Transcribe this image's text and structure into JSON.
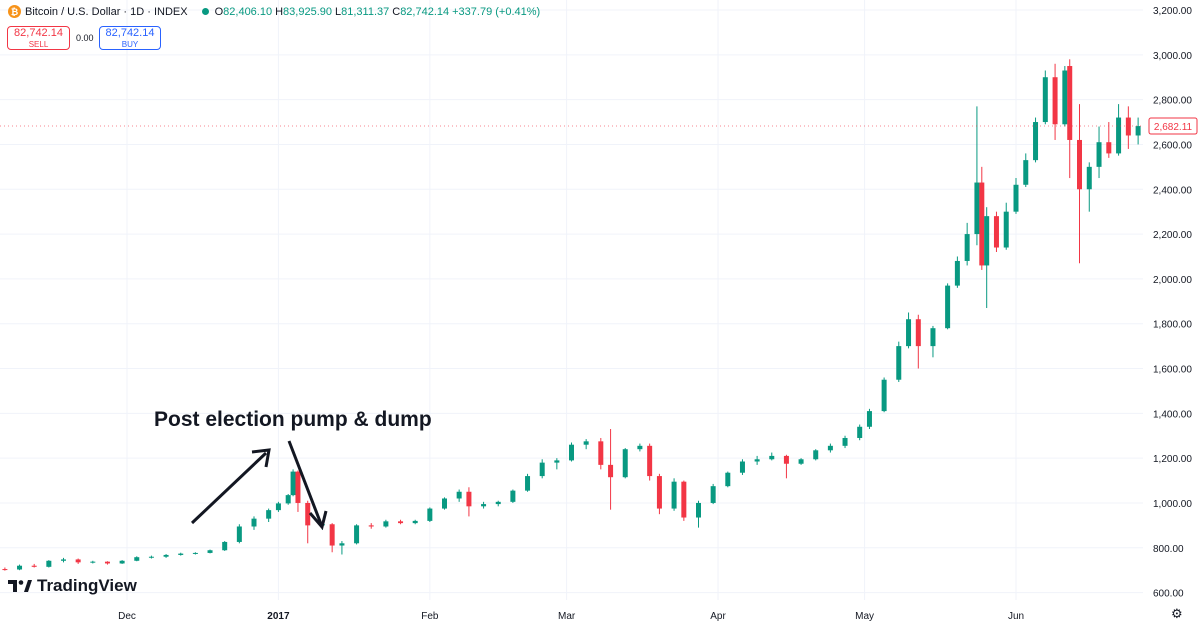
{
  "header": {
    "coin_icon": "bitcoin-icon",
    "coin_symbol": "₿",
    "symbol_title": "Bitcoin / U.S. Dollar · 1D · INDEX",
    "ohlc": {
      "o_label": "O",
      "o_value": "82,406.10",
      "h_label": "H",
      "h_value": "83,925.90",
      "l_label": "L",
      "l_value": "81,311.37",
      "c_label": "C",
      "c_value": "82,742.14",
      "change": "+337.79 (+0.41%)"
    }
  },
  "trade": {
    "sell_price": "82,742.14",
    "sell_label": "SELL",
    "spread": "0.00",
    "buy_price": "82,742.14",
    "buy_label": "BUY"
  },
  "branding": {
    "logo_text": "TradingView"
  },
  "annotation": {
    "text": "Post election pump & dump"
  },
  "colors": {
    "up": "#089981",
    "down": "#f23645",
    "grid": "#f0f3fa",
    "text": "#131722",
    "badge": "#f23645"
  },
  "chart_data": {
    "type": "candlestick",
    "title": "",
    "xlabel": "",
    "ylabel": "",
    "ylim": [
      500,
      3200
    ],
    "grid": true,
    "y_ticks": [
      "600.00",
      "800.00",
      "1,000.00",
      "1,200.00",
      "1,400.00",
      "1,600.00",
      "1,800.00",
      "2,000.00",
      "2,200.00",
      "2,400.00",
      "2,600.00",
      "2,800.00",
      "3,000.00",
      "3,200.00"
    ],
    "x_ticks": [
      {
        "label": "Dec",
        "date": "2016-12-01"
      },
      {
        "label": "2017",
        "date": "2017-01-01"
      },
      {
        "label": "Feb",
        "date": "2017-02-01"
      },
      {
        "label": "Mar",
        "date": "2017-03-01"
      },
      {
        "label": "Apr",
        "date": "2017-04-01"
      },
      {
        "label": "May",
        "date": "2017-05-01"
      },
      {
        "label": "Jun",
        "date": "2017-06-01"
      }
    ],
    "x_start": "2016-11-05",
    "x_end": "2017-06-27",
    "last_price_label": "2,682.11",
    "last_price_value": 2682.11,
    "candles": [
      {
        "date": "2016-11-06",
        "o": 705,
        "h": 712,
        "l": 698,
        "c": 703
      },
      {
        "date": "2016-11-09",
        "o": 703,
        "h": 725,
        "l": 700,
        "c": 720
      },
      {
        "date": "2016-11-12",
        "o": 720,
        "h": 728,
        "l": 712,
        "c": 715
      },
      {
        "date": "2016-11-15",
        "o": 715,
        "h": 745,
        "l": 712,
        "c": 742
      },
      {
        "date": "2016-11-18",
        "o": 742,
        "h": 755,
        "l": 735,
        "c": 748
      },
      {
        "date": "2016-11-21",
        "o": 748,
        "h": 752,
        "l": 728,
        "c": 735
      },
      {
        "date": "2016-11-24",
        "o": 735,
        "h": 742,
        "l": 730,
        "c": 738
      },
      {
        "date": "2016-11-27",
        "o": 738,
        "h": 740,
        "l": 725,
        "c": 730
      },
      {
        "date": "2016-11-30",
        "o": 730,
        "h": 745,
        "l": 728,
        "c": 742
      },
      {
        "date": "2016-12-03",
        "o": 742,
        "h": 762,
        "l": 740,
        "c": 758
      },
      {
        "date": "2016-12-06",
        "o": 758,
        "h": 765,
        "l": 752,
        "c": 760
      },
      {
        "date": "2016-12-09",
        "o": 760,
        "h": 772,
        "l": 755,
        "c": 768
      },
      {
        "date": "2016-12-12",
        "o": 768,
        "h": 778,
        "l": 765,
        "c": 774
      },
      {
        "date": "2016-12-15",
        "o": 774,
        "h": 780,
        "l": 770,
        "c": 777
      },
      {
        "date": "2016-12-18",
        "o": 777,
        "h": 792,
        "l": 775,
        "c": 789
      },
      {
        "date": "2016-12-21",
        "o": 789,
        "h": 830,
        "l": 786,
        "c": 826
      },
      {
        "date": "2016-12-24",
        "o": 826,
        "h": 905,
        "l": 820,
        "c": 895
      },
      {
        "date": "2016-12-27",
        "o": 895,
        "h": 940,
        "l": 880,
        "c": 930
      },
      {
        "date": "2016-12-30",
        "o": 930,
        "h": 975,
        "l": 915,
        "c": 968
      },
      {
        "date": "2017-01-01",
        "o": 968,
        "h": 1005,
        "l": 960,
        "c": 998
      },
      {
        "date": "2017-01-03",
        "o": 998,
        "h": 1040,
        "l": 992,
        "c": 1035
      },
      {
        "date": "2017-01-04",
        "o": 1035,
        "h": 1150,
        "l": 1030,
        "c": 1140
      },
      {
        "date": "2017-01-05",
        "o": 1140,
        "h": 1145,
        "l": 960,
        "c": 1000
      },
      {
        "date": "2017-01-07",
        "o": 1000,
        "h": 1010,
        "l": 820,
        "c": 900
      },
      {
        "date": "2017-01-10",
        "o": 900,
        "h": 915,
        "l": 880,
        "c": 905
      },
      {
        "date": "2017-01-12",
        "o": 905,
        "h": 910,
        "l": 780,
        "c": 810
      },
      {
        "date": "2017-01-14",
        "o": 810,
        "h": 830,
        "l": 770,
        "c": 820
      },
      {
        "date": "2017-01-17",
        "o": 820,
        "h": 905,
        "l": 815,
        "c": 900
      },
      {
        "date": "2017-01-20",
        "o": 900,
        "h": 910,
        "l": 885,
        "c": 895
      },
      {
        "date": "2017-01-23",
        "o": 895,
        "h": 925,
        "l": 890,
        "c": 918
      },
      {
        "date": "2017-01-26",
        "o": 918,
        "h": 925,
        "l": 905,
        "c": 910
      },
      {
        "date": "2017-01-29",
        "o": 910,
        "h": 925,
        "l": 905,
        "c": 920
      },
      {
        "date": "2017-02-01",
        "o": 920,
        "h": 980,
        "l": 915,
        "c": 975
      },
      {
        "date": "2017-02-04",
        "o": 975,
        "h": 1025,
        "l": 970,
        "c": 1020
      },
      {
        "date": "2017-02-07",
        "o": 1020,
        "h": 1060,
        "l": 1005,
        "c": 1050
      },
      {
        "date": "2017-02-09",
        "o": 1050,
        "h": 1070,
        "l": 940,
        "c": 985
      },
      {
        "date": "2017-02-12",
        "o": 985,
        "h": 1005,
        "l": 975,
        "c": 995
      },
      {
        "date": "2017-02-15",
        "o": 995,
        "h": 1010,
        "l": 985,
        "c": 1005
      },
      {
        "date": "2017-02-18",
        "o": 1005,
        "h": 1060,
        "l": 1000,
        "c": 1055
      },
      {
        "date": "2017-02-21",
        "o": 1055,
        "h": 1130,
        "l": 1050,
        "c": 1120
      },
      {
        "date": "2017-02-24",
        "o": 1120,
        "h": 1195,
        "l": 1110,
        "c": 1180
      },
      {
        "date": "2017-02-27",
        "o": 1180,
        "h": 1200,
        "l": 1150,
        "c": 1190
      },
      {
        "date": "2017-03-02",
        "o": 1190,
        "h": 1270,
        "l": 1185,
        "c": 1260
      },
      {
        "date": "2017-03-05",
        "o": 1260,
        "h": 1285,
        "l": 1240,
        "c": 1275
      },
      {
        "date": "2017-03-08",
        "o": 1275,
        "h": 1290,
        "l": 1150,
        "c": 1170
      },
      {
        "date": "2017-03-10",
        "o": 1170,
        "h": 1330,
        "l": 970,
        "c": 1115
      },
      {
        "date": "2017-03-13",
        "o": 1115,
        "h": 1245,
        "l": 1110,
        "c": 1240
      },
      {
        "date": "2017-03-16",
        "o": 1240,
        "h": 1265,
        "l": 1230,
        "c": 1255
      },
      {
        "date": "2017-03-18",
        "o": 1255,
        "h": 1265,
        "l": 1100,
        "c": 1120
      },
      {
        "date": "2017-03-20",
        "o": 1120,
        "h": 1130,
        "l": 950,
        "c": 975
      },
      {
        "date": "2017-03-23",
        "o": 975,
        "h": 1110,
        "l": 965,
        "c": 1095
      },
      {
        "date": "2017-03-25",
        "o": 1095,
        "h": 1100,
        "l": 920,
        "c": 935
      },
      {
        "date": "2017-03-28",
        "o": 935,
        "h": 1010,
        "l": 890,
        "c": 1000
      },
      {
        "date": "2017-03-31",
        "o": 1000,
        "h": 1085,
        "l": 995,
        "c": 1075
      },
      {
        "date": "2017-04-03",
        "o": 1075,
        "h": 1140,
        "l": 1070,
        "c": 1135
      },
      {
        "date": "2017-04-06",
        "o": 1135,
        "h": 1195,
        "l": 1125,
        "c": 1185
      },
      {
        "date": "2017-04-09",
        "o": 1185,
        "h": 1210,
        "l": 1170,
        "c": 1195
      },
      {
        "date": "2017-04-12",
        "o": 1195,
        "h": 1225,
        "l": 1190,
        "c": 1210
      },
      {
        "date": "2017-04-15",
        "o": 1210,
        "h": 1215,
        "l": 1110,
        "c": 1175
      },
      {
        "date": "2017-04-18",
        "o": 1175,
        "h": 1200,
        "l": 1170,
        "c": 1195
      },
      {
        "date": "2017-04-21",
        "o": 1195,
        "h": 1240,
        "l": 1190,
        "c": 1235
      },
      {
        "date": "2017-04-24",
        "o": 1235,
        "h": 1265,
        "l": 1225,
        "c": 1255
      },
      {
        "date": "2017-04-27",
        "o": 1255,
        "h": 1300,
        "l": 1245,
        "c": 1290
      },
      {
        "date": "2017-04-30",
        "o": 1290,
        "h": 1350,
        "l": 1280,
        "c": 1340
      },
      {
        "date": "2017-05-02",
        "o": 1340,
        "h": 1420,
        "l": 1330,
        "c": 1410
      },
      {
        "date": "2017-05-05",
        "o": 1410,
        "h": 1560,
        "l": 1405,
        "c": 1550
      },
      {
        "date": "2017-05-08",
        "o": 1550,
        "h": 1720,
        "l": 1540,
        "c": 1700
      },
      {
        "date": "2017-05-10",
        "o": 1700,
        "h": 1850,
        "l": 1690,
        "c": 1820
      },
      {
        "date": "2017-05-12",
        "o": 1820,
        "h": 1840,
        "l": 1600,
        "c": 1700
      },
      {
        "date": "2017-05-15",
        "o": 1700,
        "h": 1790,
        "l": 1650,
        "c": 1780
      },
      {
        "date": "2017-05-18",
        "o": 1780,
        "h": 1980,
        "l": 1775,
        "c": 1970
      },
      {
        "date": "2017-05-20",
        "o": 1970,
        "h": 2100,
        "l": 1960,
        "c": 2080
      },
      {
        "date": "2017-05-22",
        "o": 2080,
        "h": 2250,
        "l": 2060,
        "c": 2200
      },
      {
        "date": "2017-05-24",
        "o": 2200,
        "h": 2770,
        "l": 2150,
        "c": 2430
      },
      {
        "date": "2017-05-25",
        "o": 2430,
        "h": 2500,
        "l": 2040,
        "c": 2060
      },
      {
        "date": "2017-05-26",
        "o": 2060,
        "h": 2320,
        "l": 1870,
        "c": 2280
      },
      {
        "date": "2017-05-28",
        "o": 2280,
        "h": 2300,
        "l": 2120,
        "c": 2140
      },
      {
        "date": "2017-05-30",
        "o": 2140,
        "h": 2340,
        "l": 2130,
        "c": 2300
      },
      {
        "date": "2017-06-01",
        "o": 2300,
        "h": 2450,
        "l": 2290,
        "c": 2420
      },
      {
        "date": "2017-06-03",
        "o": 2420,
        "h": 2560,
        "l": 2410,
        "c": 2530
      },
      {
        "date": "2017-06-05",
        "o": 2530,
        "h": 2720,
        "l": 2520,
        "c": 2700
      },
      {
        "date": "2017-06-07",
        "o": 2700,
        "h": 2930,
        "l": 2690,
        "c": 2900
      },
      {
        "date": "2017-06-09",
        "o": 2900,
        "h": 2960,
        "l": 2620,
        "c": 2690
      },
      {
        "date": "2017-06-11",
        "o": 2690,
        "h": 2950,
        "l": 2680,
        "c": 2930
      },
      {
        "date": "2017-06-12",
        "o": 2950,
        "h": 2980,
        "l": 2450,
        "c": 2620
      },
      {
        "date": "2017-06-14",
        "o": 2620,
        "h": 2780,
        "l": 2070,
        "c": 2400
      },
      {
        "date": "2017-06-16",
        "o": 2400,
        "h": 2520,
        "l": 2300,
        "c": 2500
      },
      {
        "date": "2017-06-18",
        "o": 2500,
        "h": 2680,
        "l": 2450,
        "c": 2610
      },
      {
        "date": "2017-06-20",
        "o": 2610,
        "h": 2700,
        "l": 2540,
        "c": 2560
      },
      {
        "date": "2017-06-22",
        "o": 2560,
        "h": 2780,
        "l": 2550,
        "c": 2720
      },
      {
        "date": "2017-06-24",
        "o": 2720,
        "h": 2770,
        "l": 2580,
        "c": 2640
      },
      {
        "date": "2017-06-26",
        "o": 2640,
        "h": 2720,
        "l": 2600,
        "c": 2682
      }
    ]
  }
}
